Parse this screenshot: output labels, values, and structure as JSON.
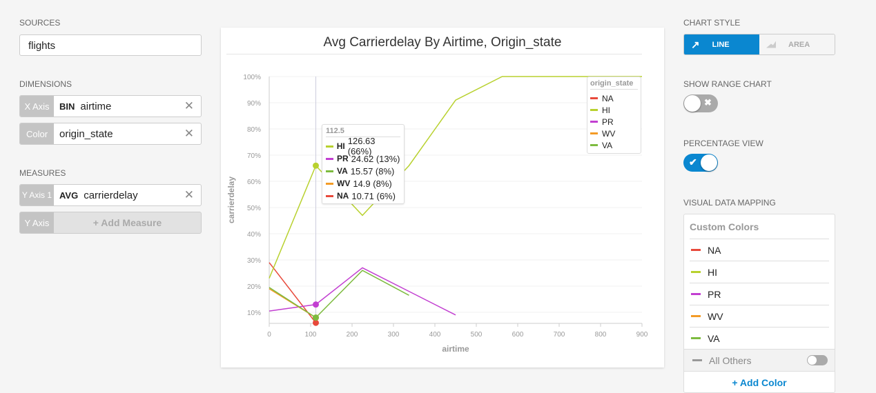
{
  "left": {
    "sources_label": "SOURCES",
    "source_value": "flights",
    "dimensions_label": "DIMENSIONS",
    "dimensions": [
      {
        "tag": "X Axis",
        "agg": "BIN",
        "field": "airtime"
      },
      {
        "tag": "Color",
        "agg": "",
        "field": "origin_state"
      }
    ],
    "measures_label": "MEASURES",
    "measures": [
      {
        "tag": "Y Axis 1",
        "agg": "AVG",
        "field": "carrierdelay"
      }
    ],
    "add_measure": {
      "tag": "Y Axis",
      "label": "+ Add Measure"
    }
  },
  "right": {
    "chart_style_label": "CHART STYLE",
    "line_label": "LINE",
    "area_label": "AREA",
    "range_label": "SHOW RANGE CHART",
    "range_on": false,
    "percent_label": "PERCENTAGE VIEW",
    "percent_on": true,
    "vdm_label": "VISUAL DATA MAPPING",
    "custom_colors": "Custom Colors",
    "colors": [
      {
        "name": "NA",
        "color": "#e8493b"
      },
      {
        "name": "HI",
        "color": "#b8d12e"
      },
      {
        "name": "PR",
        "color": "#c23fd1"
      },
      {
        "name": "WV",
        "color": "#f39b26"
      },
      {
        "name": "VA",
        "color": "#7dbb3f"
      }
    ],
    "all_others": "All Others",
    "add_color": "+ Add Color"
  },
  "tooltip": {
    "title": "112.5",
    "rows": [
      {
        "name": "HI",
        "value": "126.63 (66%)",
        "color": "#b8d12e"
      },
      {
        "name": "PR",
        "value": "24.62 (13%)",
        "color": "#c23fd1"
      },
      {
        "name": "VA",
        "value": "15.57 (8%)",
        "color": "#7dbb3f"
      },
      {
        "name": "WV",
        "value": "14.9 (8%)",
        "color": "#f39b26"
      },
      {
        "name": "NA",
        "value": "10.71 (6%)",
        "color": "#e8493b"
      }
    ]
  },
  "chart_data": {
    "type": "line",
    "title": "Avg Carrierdelay By Airtime, Origin_state",
    "xlabel": "airtime",
    "ylabel": "carrierdelay",
    "legend_title": "origin_state",
    "legend_position": "top-right",
    "xlim": [
      0,
      900
    ],
    "ylim": [
      5.8,
      100
    ],
    "xticks": [
      0,
      100,
      200,
      300,
      400,
      500,
      600,
      700,
      800,
      900
    ],
    "xtick_labels": [
      "0",
      "100",
      "200",
      "300",
      "400",
      "500",
      "600",
      "700",
      "800",
      "900"
    ],
    "yticks": [
      10,
      20,
      30,
      40,
      50,
      60,
      70,
      80,
      90,
      100
    ],
    "ytick_labels": [
      "10%",
      "20%",
      "30%",
      "40%",
      "50%",
      "60%",
      "70%",
      "80%",
      "90%",
      "100%"
    ],
    "hover_x": 112.5,
    "series": [
      {
        "name": "NA",
        "color": "#e8493b",
        "x": [
          0,
          112.5
        ],
        "values": [
          29,
          6
        ]
      },
      {
        "name": "HI",
        "color": "#b8d12e",
        "x": [
          0,
          112.5,
          225,
          337.5,
          450,
          562.5,
          675,
          787.5,
          900
        ],
        "values": [
          23,
          66,
          47,
          66,
          91,
          100,
          100,
          100,
          100
        ]
      },
      {
        "name": "PR",
        "color": "#c23fd1",
        "x": [
          0,
          112.5,
          225,
          337.5,
          450
        ],
        "values": [
          10.5,
          13,
          27,
          18,
          9
        ]
      },
      {
        "name": "WV",
        "color": "#f39b26",
        "x": [
          0,
          112.5
        ],
        "values": [
          19,
          8
        ]
      },
      {
        "name": "VA",
        "color": "#7dbb3f",
        "x": [
          0,
          112.5,
          225,
          337.5
        ],
        "values": [
          19.5,
          8,
          26,
          16.5
        ]
      }
    ]
  }
}
